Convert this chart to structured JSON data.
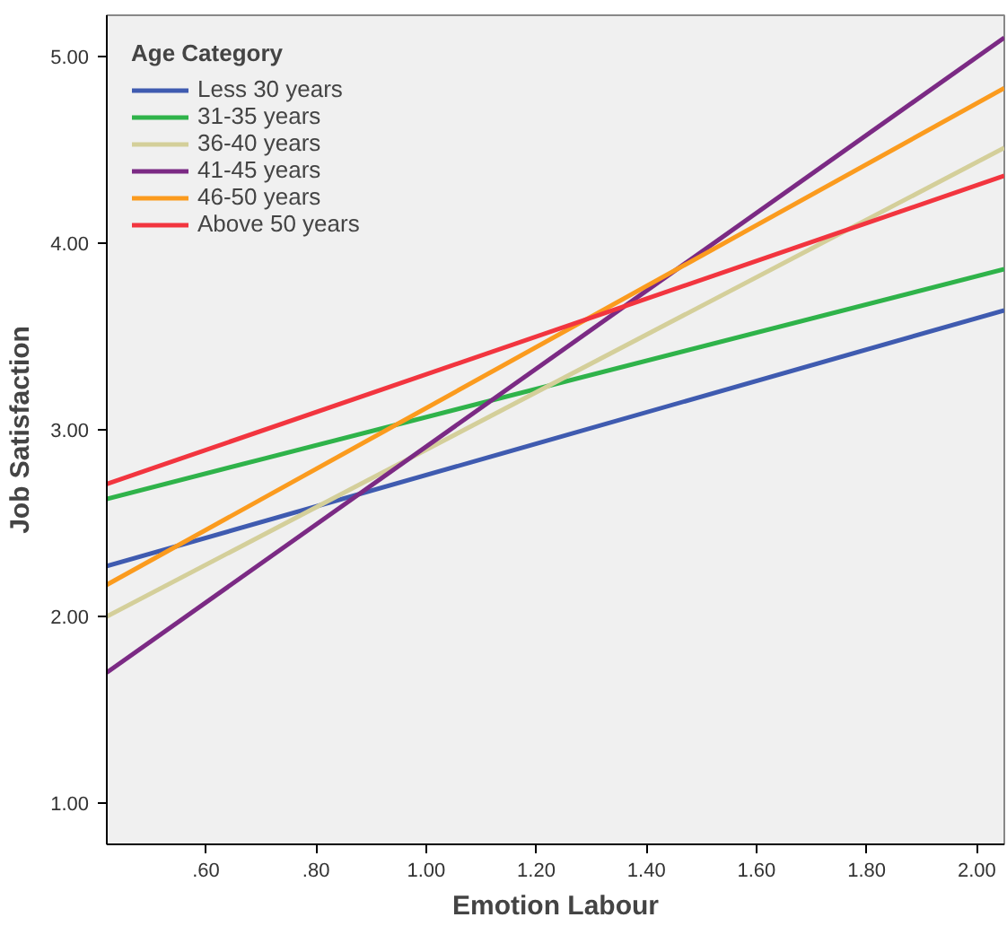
{
  "chart_data": {
    "type": "line",
    "xlabel": "Emotion Labour",
    "ylabel": "Job Satisfaction",
    "legend_title": "Age Category",
    "legend": "top left",
    "grid": false,
    "marker": "none",
    "line_style": "solid",
    "x": [
      0.42,
      2.05
    ],
    "xlim": [
      0.42,
      2.05
    ],
    "ylim": [
      0.78,
      5.22
    ],
    "xticks": [
      {
        "value": 0.6,
        "label": ".60"
      },
      {
        "value": 0.8,
        "label": ".80"
      },
      {
        "value": 1.0,
        "label": "1.00"
      },
      {
        "value": 1.2,
        "label": "1.20"
      },
      {
        "value": 1.4,
        "label": "1.40"
      },
      {
        "value": 1.6,
        "label": "1.60"
      },
      {
        "value": 1.8,
        "label": "1.80"
      },
      {
        "value": 2.0,
        "label": "2.00"
      }
    ],
    "yticks": [
      {
        "value": 1,
        "label": "1.00"
      },
      {
        "value": 2,
        "label": "2.00"
      },
      {
        "value": 3,
        "label": "3.00"
      },
      {
        "value": 4,
        "label": "4.00"
      },
      {
        "value": 5,
        "label": "5.00"
      }
    ],
    "series": [
      {
        "name": "Less 30 years",
        "color": "#3f5bb0",
        "values": [
          2.27,
          3.64
        ]
      },
      {
        "name": "31-35 years",
        "color": "#2fb34a",
        "values": [
          2.63,
          3.86
        ]
      },
      {
        "name": "36-40 years",
        "color": "#d4cf9a",
        "values": [
          2.0,
          4.51
        ]
      },
      {
        "name": "41-45 years",
        "color": "#7b2a84",
        "values": [
          1.7,
          5.1
        ]
      },
      {
        "name": "46-50 years",
        "color": "#fb9b1e",
        "values": [
          2.17,
          4.83
        ]
      },
      {
        "name": "Above 50 years",
        "color": "#f2353f",
        "values": [
          2.71,
          4.36
        ]
      }
    ]
  }
}
